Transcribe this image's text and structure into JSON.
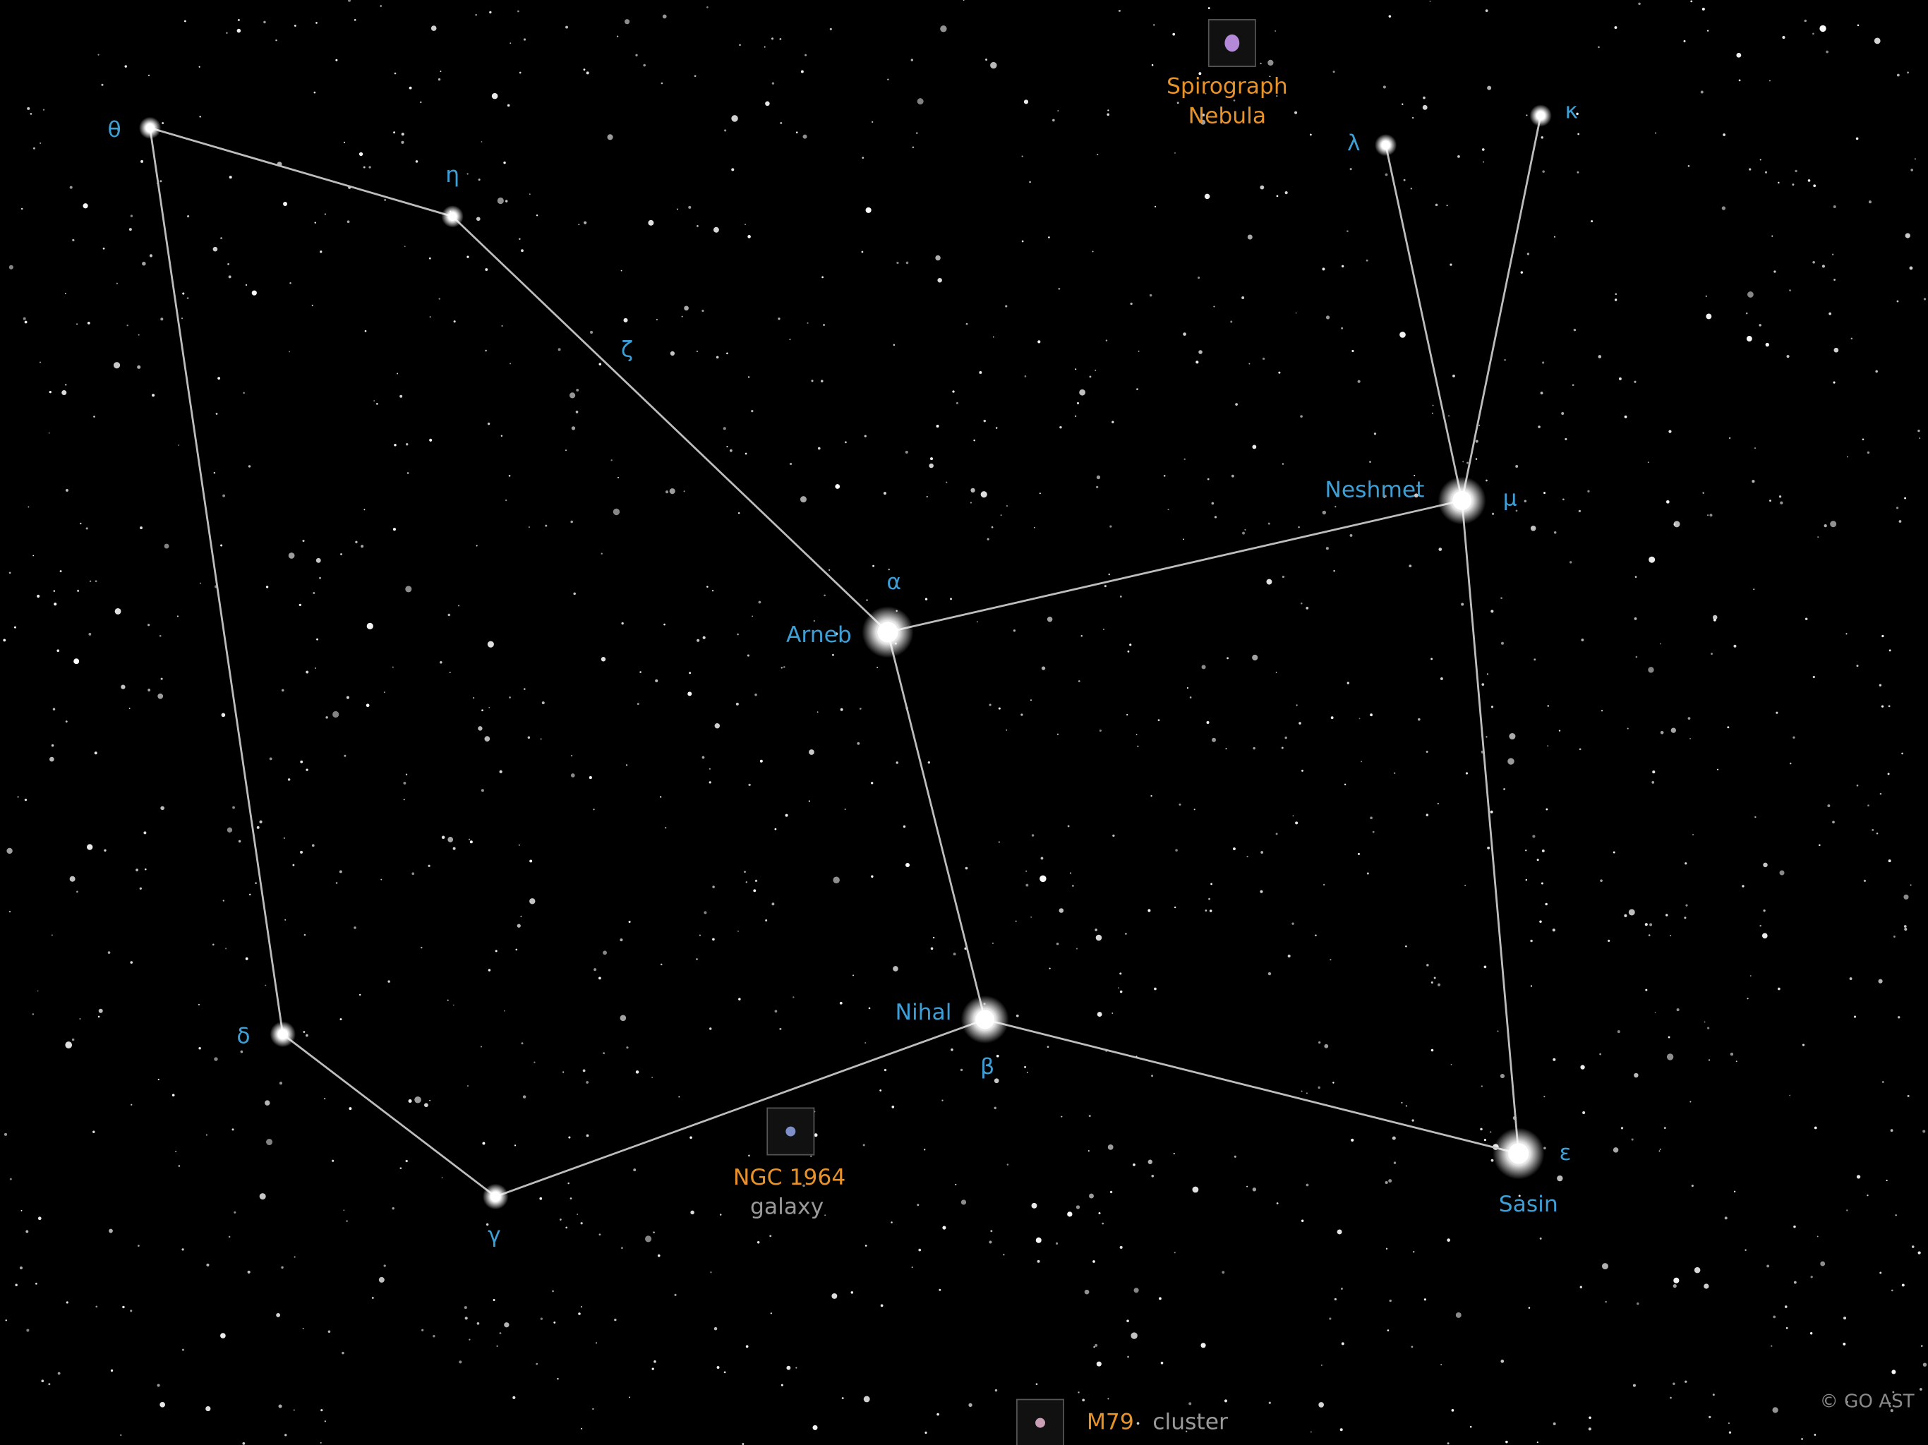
{
  "stars": [
    {
      "greek": "θ"
    },
    {
      "greek": "η"
    },
    {
      "greek": "ζ"
    },
    {
      "greek": "α",
      "name": "Arneb"
    },
    {
      "greek": "μ",
      "name": "Neshmet"
    },
    {
      "greek": "λ"
    },
    {
      "greek": "κ"
    },
    {
      "greek": "β",
      "name": "Nihal"
    },
    {
      "greek": "ε",
      "name": "Sasin"
    },
    {
      "greek": "δ"
    },
    {
      "greek": "γ"
    }
  ],
  "deep_sky": [
    {
      "name": [
        "Spirograph",
        "Nebula"
      ]
    },
    {
      "name": [
        "NGC 1964"
      ],
      "type": "galaxy"
    },
    {
      "name": [
        "M79"
      ],
      "type": "cluster"
    }
  ],
  "watermark": "© GO AST"
}
